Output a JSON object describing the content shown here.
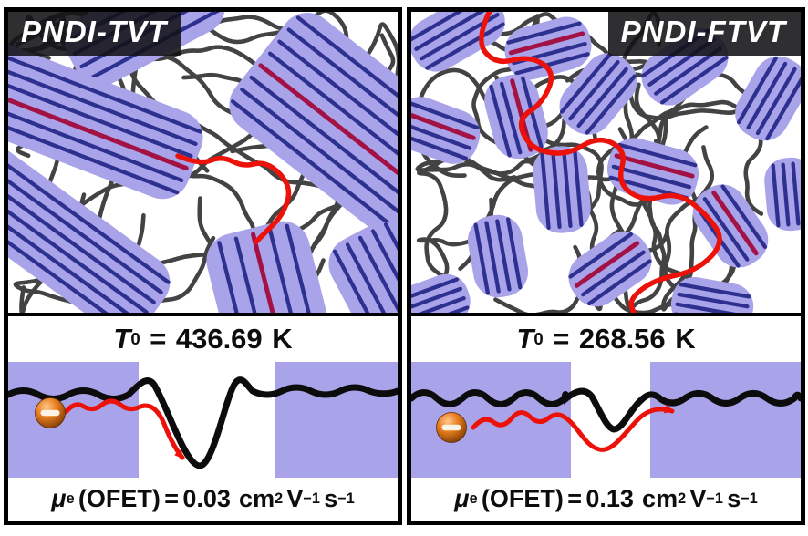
{
  "colors": {
    "lavender": "#a9a4e9",
    "navy": "#2e3090",
    "crimson": "#a31245",
    "red": "#ec1109",
    "chain_gray": "#434343",
    "curve_black": "#0c0c0c",
    "label_bg": "#121216",
    "label_text": "#ffffff",
    "sphere_orange": "#e87d1f",
    "text_black": "#0d0d0d"
  },
  "panels": [
    {
      "label": "PNDI-TVT",
      "t0": {
        "symbol": "T",
        "subscript": "0",
        "equals": "=",
        "value": "436.69",
        "unit": "K"
      },
      "mobility": {
        "symbol": "μ",
        "subscript": "e",
        "method": "(OFET)",
        "equals": "=",
        "value": "0.03",
        "unit_cm": "cm",
        "unit_cm_exp": "2",
        "unit_v": "V",
        "unit_v_exp": "−1",
        "unit_s": "s",
        "unit_s_exp": "−1"
      }
    },
    {
      "label": "PNDI-FTVT",
      "t0": {
        "symbol": "T",
        "subscript": "0",
        "equals": "=",
        "value": "268.56",
        "unit": "K"
      },
      "mobility": {
        "symbol": "μ",
        "subscript": "e",
        "method": "(OFET)",
        "equals": "=",
        "value": "0.13",
        "unit_cm": "cm",
        "unit_cm_exp": "2",
        "unit_v": "V",
        "unit_v_exp": "−1",
        "unit_s": "s",
        "unit_s_exp": "−1"
      }
    }
  ]
}
